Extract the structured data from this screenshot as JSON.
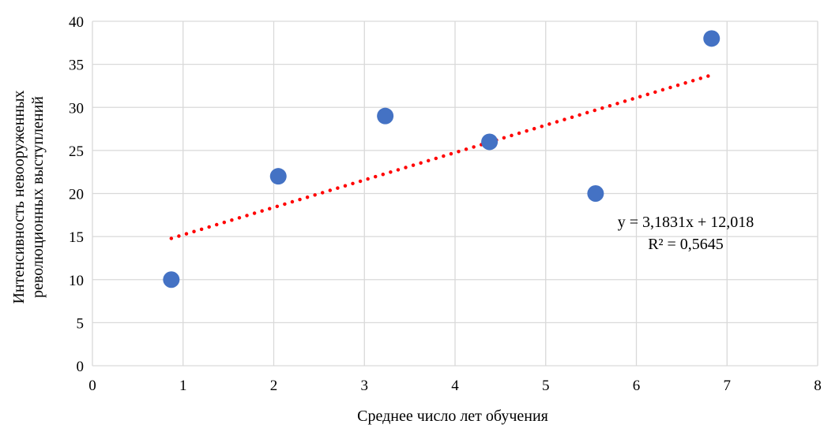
{
  "chart_data": {
    "type": "scatter",
    "xlabel": "Среднее число лет обучения",
    "ylabel_lines": [
      "Интенсивность невооруженных",
      "революционных выступлений"
    ],
    "xlim": [
      0,
      8
    ],
    "ylim": [
      0,
      40
    ],
    "x_ticks": [
      0,
      1,
      2,
      3,
      4,
      5,
      6,
      7,
      8
    ],
    "y_ticks": [
      0,
      5,
      10,
      15,
      20,
      25,
      30,
      35,
      40
    ],
    "grid": true,
    "legend": "none",
    "series": [
      {
        "points": [
          {
            "x": 0.87,
            "y": 10
          },
          {
            "x": 2.05,
            "y": 22
          },
          {
            "x": 3.23,
            "y": 29
          },
          {
            "x": 4.38,
            "y": 26
          },
          {
            "x": 5.55,
            "y": 20
          },
          {
            "x": 6.83,
            "y": 38
          }
        ],
        "color": "#4472C4"
      }
    ],
    "trendline": {
      "type": "linear",
      "slope": 3.1831,
      "intercept": 12.018,
      "x_range": [
        0.87,
        6.83
      ],
      "color": "#FF0000",
      "style": "dotted"
    },
    "annotations": [
      "y = 3,1831x + 12,018",
      "R² = 0,5645"
    ]
  }
}
